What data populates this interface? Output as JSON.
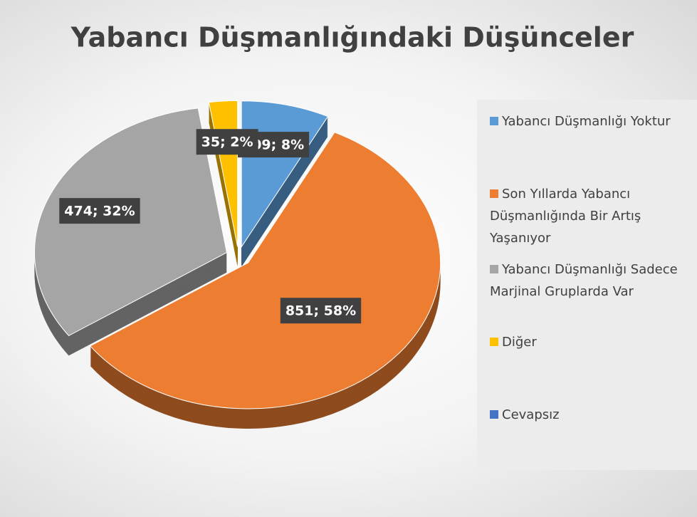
{
  "chart_data": {
    "type": "pie",
    "title": "Yabancı Düşmanlığındaki Düşünceler",
    "categories": [
      "Yabancı Düşmanlığı Yoktur",
      "Son Yıllarda Yabancı Düşmanlığında Bir Artış Yaşanıyor",
      "Yabancı Düşmanlığı Sadece Marjinal Gruplarda Var",
      "Diğer",
      "Cevapsız"
    ],
    "values": [
      109,
      851,
      474,
      35,
      0
    ],
    "value_labels": [
      "109; 8%",
      "851; 58%",
      "474; 32%",
      "35; 2%",
      null
    ],
    "colors": [
      "#5b9bd5",
      "#ed7d31",
      "#a5a5a5",
      "#ffc000",
      "#4472c4"
    ],
    "legend": "right"
  }
}
